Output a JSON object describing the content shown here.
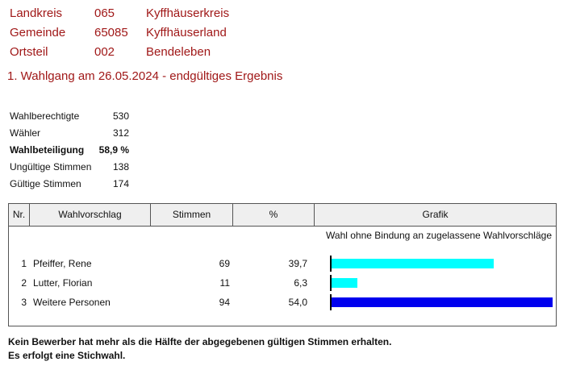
{
  "location": [
    {
      "label": "Landkreis",
      "code": "065",
      "name": "Kyffhäuserkreis"
    },
    {
      "label": "Gemeinde",
      "code": "65085",
      "name": "Kyffhäuserland"
    },
    {
      "label": "Ortsteil",
      "code": "002",
      "name": "Bendeleben"
    }
  ],
  "heading": "1. Wahlgang am 26.05.2024 - endgültiges Ergebnis",
  "stats": [
    {
      "label": "Wahlberechtigte",
      "value": "530"
    },
    {
      "label": "Wähler",
      "value": "312"
    },
    {
      "label": "Wahlbeteiligung",
      "value": "58,9 %"
    },
    {
      "label": "Ungültige Stimmen",
      "value": "138"
    },
    {
      "label": "Gültige Stimmen",
      "value": "174"
    }
  ],
  "table": {
    "headers": [
      "Nr.",
      "Wahlvorschlag",
      "Stimmen",
      "%",
      "Grafik"
    ],
    "caption": "Wahl ohne Bindung an zugelassene Wahlvorschläge",
    "rows": [
      {
        "nr": "1",
        "name": "Pfeiffer, Rene",
        "votes": "69",
        "percent": "39,7",
        "share": 0.397,
        "color": "#00ffff"
      },
      {
        "nr": "2",
        "name": "Lutter, Florian",
        "votes": "11",
        "percent": "6,3",
        "share": 0.063,
        "color": "#00ffff"
      },
      {
        "nr": "3",
        "name": "Weitere Personen",
        "votes": "94",
        "percent": "54,0",
        "share": 0.54,
        "color": "#0000ee"
      }
    ]
  },
  "footer": {
    "line1": "Kein Bewerber hat mehr als die Hälfte der abgegebenen gültigen Stimmen erhalten.",
    "line2": "Es erfolgt eine Stichwahl."
  }
}
